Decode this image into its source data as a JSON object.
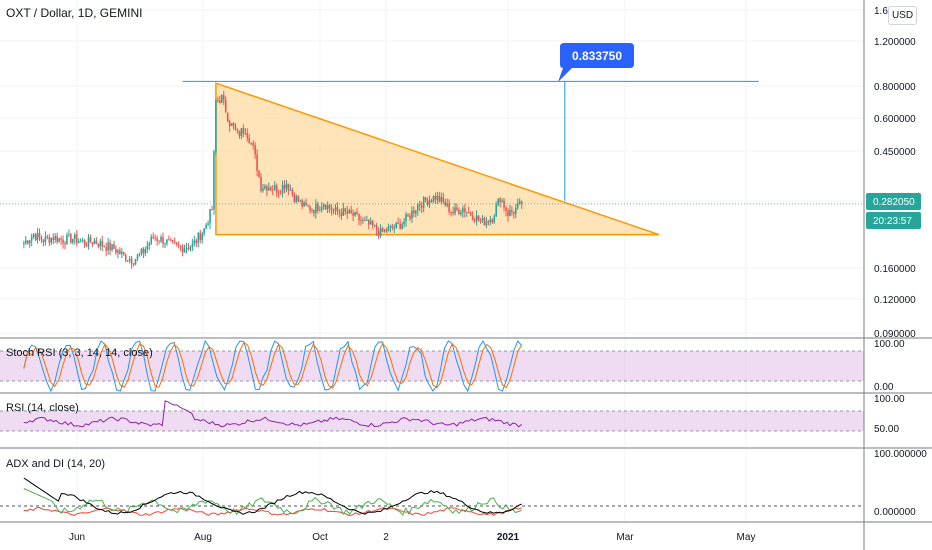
{
  "header": {
    "title": "OXT / Dollar, 1D, GEMINI"
  },
  "currency_button": "USD",
  "price_scale": {
    "tick_labels": [
      "1.600000",
      "1.200000",
      "0.800000",
      "0.600000",
      "0.450000",
      "0.282050",
      "0.160000",
      "0.120000",
      "0.090000"
    ],
    "log_scale": true,
    "last_price": "0.282050",
    "countdown": "20:23:57"
  },
  "time_axis": {
    "labels": [
      "Jun",
      "Aug",
      "Oct",
      "2",
      "2021",
      "Mar",
      "May"
    ]
  },
  "annotation": {
    "price_label": "0.833750"
  },
  "panes": {
    "stoch": {
      "title": "Stoch RSI (3, 3, 14, 14, close)",
      "ticks": [
        "100.00",
        "0.00"
      ]
    },
    "rsi": {
      "title": "RSI (14, close)",
      "ticks": [
        "100.00",
        "50.00"
      ]
    },
    "adx": {
      "title": "ADX and DI (14, 20)",
      "ticks": [
        "100.000000",
        "0.000000"
      ]
    }
  },
  "colors": {
    "up": "#26a69a",
    "down": "#ef5350",
    "triangle_fill": "#ffcc80",
    "triangle_stroke": "#ff9800",
    "line_blue": "#2196f3",
    "price_label_bg": "#2962ff",
    "countdown_bg": "#26a69a",
    "stoch_k": "#2196f3",
    "stoch_d": "#ff6d00",
    "band_fill": "#e1bee7",
    "rsi_line": "#8e24aa",
    "adx_line": "#000000",
    "di_plus": "#4caf50",
    "di_minus": "#f44336"
  },
  "chart_data": {
    "type": "candlestick",
    "title": "OXT / Dollar, 1D, GEMINI",
    "y_scale": "log",
    "ylim": [
      0.09,
      1.6
    ],
    "x_ticks": [
      "Jun",
      "Aug",
      "Oct",
      "2",
      "2021",
      "Mar",
      "May"
    ],
    "price_path": [
      [
        "2020-05-05",
        0.2
      ],
      [
        "2020-05-10",
        0.215
      ],
      [
        "2020-05-15",
        0.205
      ],
      [
        "2020-05-20",
        0.21
      ],
      [
        "2020-05-25",
        0.205
      ],
      [
        "2020-05-30",
        0.208
      ],
      [
        "2020-06-05",
        0.2
      ],
      [
        "2020-06-10",
        0.203
      ],
      [
        "2020-06-15",
        0.195
      ],
      [
        "2020-06-20",
        0.19
      ],
      [
        "2020-06-25",
        0.178
      ],
      [
        "2020-06-30",
        0.172
      ],
      [
        "2020-07-05",
        0.185
      ],
      [
        "2020-07-10",
        0.21
      ],
      [
        "2020-07-15",
        0.205
      ],
      [
        "2020-07-20",
        0.195
      ],
      [
        "2020-07-25",
        0.192
      ],
      [
        "2020-07-30",
        0.195
      ],
      [
        "2020-08-05",
        0.225
      ],
      [
        "2020-08-09",
        0.27
      ],
      [
        "2020-08-11",
        0.7
      ],
      [
        "2020-08-14",
        0.72
      ],
      [
        "2020-08-18",
        0.58
      ],
      [
        "2020-08-22",
        0.52
      ],
      [
        "2020-08-26",
        0.55
      ],
      [
        "2020-08-30",
        0.46
      ],
      [
        "2020-09-03",
        0.33
      ],
      [
        "2020-09-07",
        0.33
      ],
      [
        "2020-09-12",
        0.32
      ],
      [
        "2020-09-16",
        0.34
      ],
      [
        "2020-09-20",
        0.3
      ],
      [
        "2020-09-25",
        0.275
      ],
      [
        "2020-09-30",
        0.27
      ],
      [
        "2020-10-05",
        0.285
      ],
      [
        "2020-10-10",
        0.265
      ],
      [
        "2020-10-15",
        0.262
      ],
      [
        "2020-10-20",
        0.255
      ],
      [
        "2020-10-25",
        0.24
      ],
      [
        "2020-10-30",
        0.23
      ],
      [
        "2020-11-03",
        0.218
      ],
      [
        "2020-11-07",
        0.225
      ],
      [
        "2020-11-12",
        0.232
      ],
      [
        "2020-11-17",
        0.25
      ],
      [
        "2020-11-22",
        0.28
      ],
      [
        "2020-11-26",
        0.29
      ],
      [
        "2020-12-01",
        0.3
      ],
      [
        "2020-12-05",
        0.285
      ],
      [
        "2020-12-10",
        0.262
      ],
      [
        "2020-12-15",
        0.272
      ],
      [
        "2020-12-20",
        0.255
      ],
      [
        "2020-12-25",
        0.24
      ],
      [
        "2020-12-30",
        0.25
      ],
      [
        "2021-01-03",
        0.3
      ],
      [
        "2021-01-07",
        0.26
      ],
      [
        "2021-01-10",
        0.265
      ],
      [
        "2021-01-14",
        0.282
      ]
    ],
    "annotations": {
      "triangle": [
        [
          "2020-08-11",
          0.82
        ],
        [
          "2021-03-25",
          0.215
        ],
        [
          "2020-08-11",
          0.215
        ]
      ],
      "horizontal_line": {
        "price": 0.83375,
        "from": "2020-07-25",
        "to": "2021-05-15"
      },
      "projection": {
        "date": "2021-02-05",
        "from": 0.29,
        "to": 0.83375,
        "label": "0.833750"
      }
    },
    "series": [
      {
        "name": "Stoch RSI (3, 3, 14, 14, close)",
        "range": [
          0,
          100
        ],
        "band": [
          20,
          80
        ]
      },
      {
        "name": "RSI (14, close)",
        "range": [
          0,
          100
        ],
        "band": [
          30,
          70
        ]
      },
      {
        "name": "ADX and DI (14, 20)",
        "range": [
          0,
          100
        ],
        "level": 20
      }
    ]
  }
}
